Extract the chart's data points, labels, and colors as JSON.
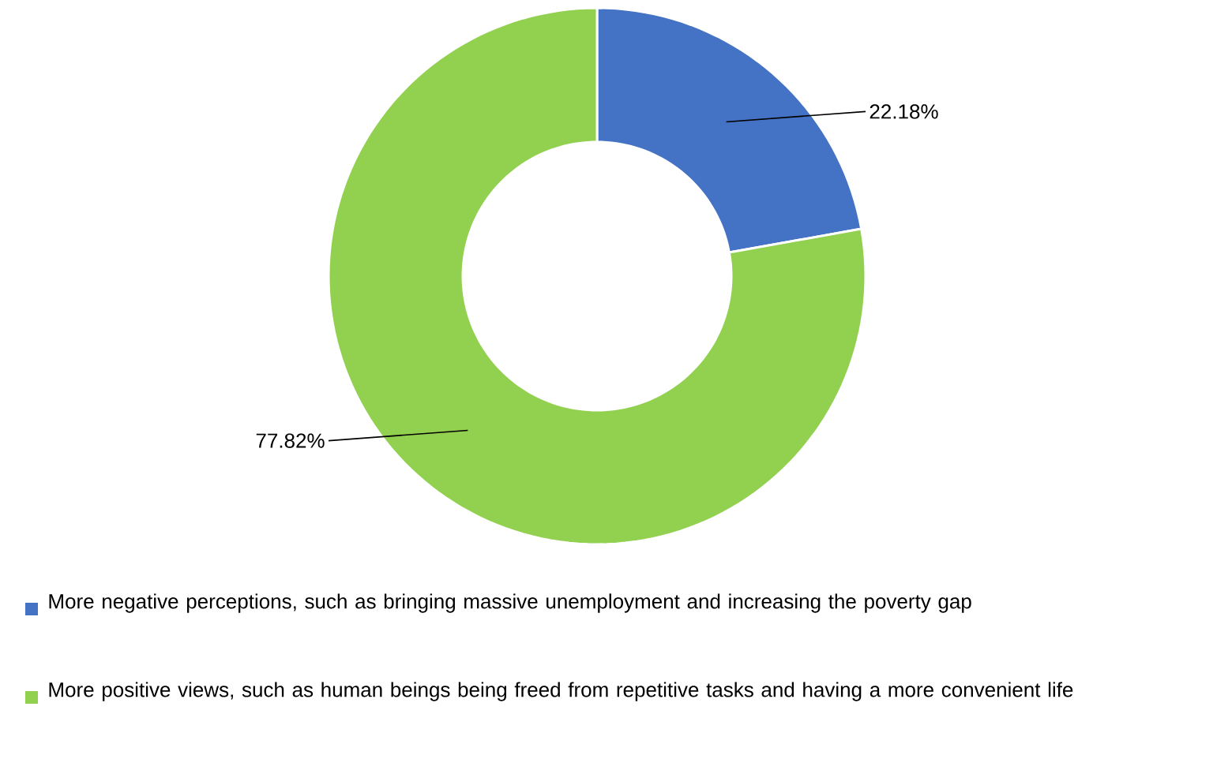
{
  "chart_data": {
    "type": "donut",
    "categories": [
      "More negative perceptions, such as bringing massive unemployment and increasing the poverty gap",
      "More positive views, such as human beings being freed from repetitive tasks and having a more convenient life"
    ],
    "values": [
      22.18,
      77.82
    ],
    "colors": [
      "#4472c4",
      "#92d050"
    ],
    "value_labels": [
      "22.18%",
      "77.82%"
    ],
    "legend": "bottom"
  }
}
